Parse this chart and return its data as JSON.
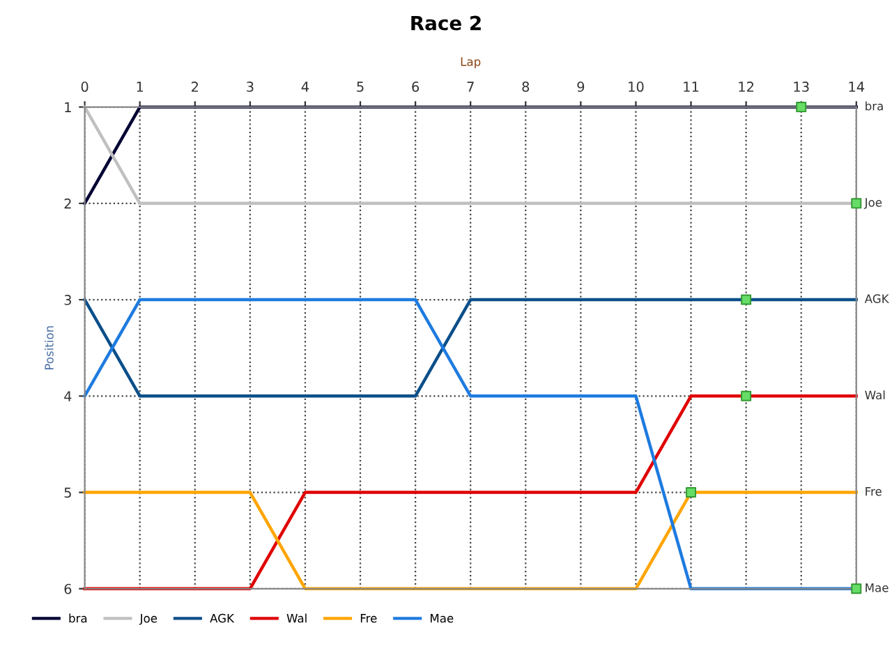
{
  "chart_data": {
    "type": "line",
    "title": "Race 2",
    "xlabel": "Lap",
    "ylabel": "Position",
    "x": [
      0,
      1,
      2,
      3,
      4,
      5,
      6,
      7,
      8,
      9,
      10,
      11,
      12,
      13,
      14
    ],
    "xlim": [
      0,
      14
    ],
    "xticks": [
      0,
      1,
      2,
      3,
      4,
      5,
      6,
      7,
      8,
      9,
      10,
      11,
      12,
      13,
      14
    ],
    "ylim": [
      6,
      1
    ],
    "yticks": [
      1,
      2,
      3,
      4,
      5,
      6
    ],
    "grid": true,
    "legend": "bottom left",
    "line_style": "solid",
    "marker": "none",
    "series": [
      {
        "name": "bra",
        "color": "#000033",
        "values": [
          2,
          1,
          1,
          1,
          1,
          1,
          1,
          1,
          1,
          1,
          1,
          1,
          1,
          1,
          1
        ]
      },
      {
        "name": "Joe",
        "color": "#c0c0c0",
        "values": [
          1,
          2,
          2,
          2,
          2,
          2,
          2,
          2,
          2,
          2,
          2,
          2,
          2,
          2,
          2
        ]
      },
      {
        "name": "AGK",
        "color": "#0b4f8a",
        "values": [
          3,
          4,
          4,
          4,
          4,
          4,
          4,
          3,
          3,
          3,
          3,
          3,
          3,
          3,
          3
        ]
      },
      {
        "name": "Wal",
        "color": "#e00000",
        "values": [
          6,
          6,
          6,
          6,
          5,
          5,
          5,
          5,
          5,
          5,
          5,
          4,
          4,
          4,
          4
        ]
      },
      {
        "name": "Fre",
        "color": "#ffa500",
        "values": [
          5,
          5,
          5,
          5,
          6,
          6,
          6,
          6,
          6,
          6,
          6,
          5,
          5,
          5,
          5
        ]
      },
      {
        "name": "Mae",
        "color": "#1e7be0",
        "values": [
          4,
          3,
          3,
          3,
          3,
          3,
          3,
          4,
          4,
          4,
          4,
          6,
          6,
          6,
          6
        ]
      },
      {
        "type": "scatter",
        "marker": "square",
        "color": "#66dd66",
        "x": [
          13,
          14,
          12,
          12,
          11,
          14
        ],
        "values": [
          1,
          2,
          3,
          4,
          5,
          6
        ]
      }
    ]
  }
}
